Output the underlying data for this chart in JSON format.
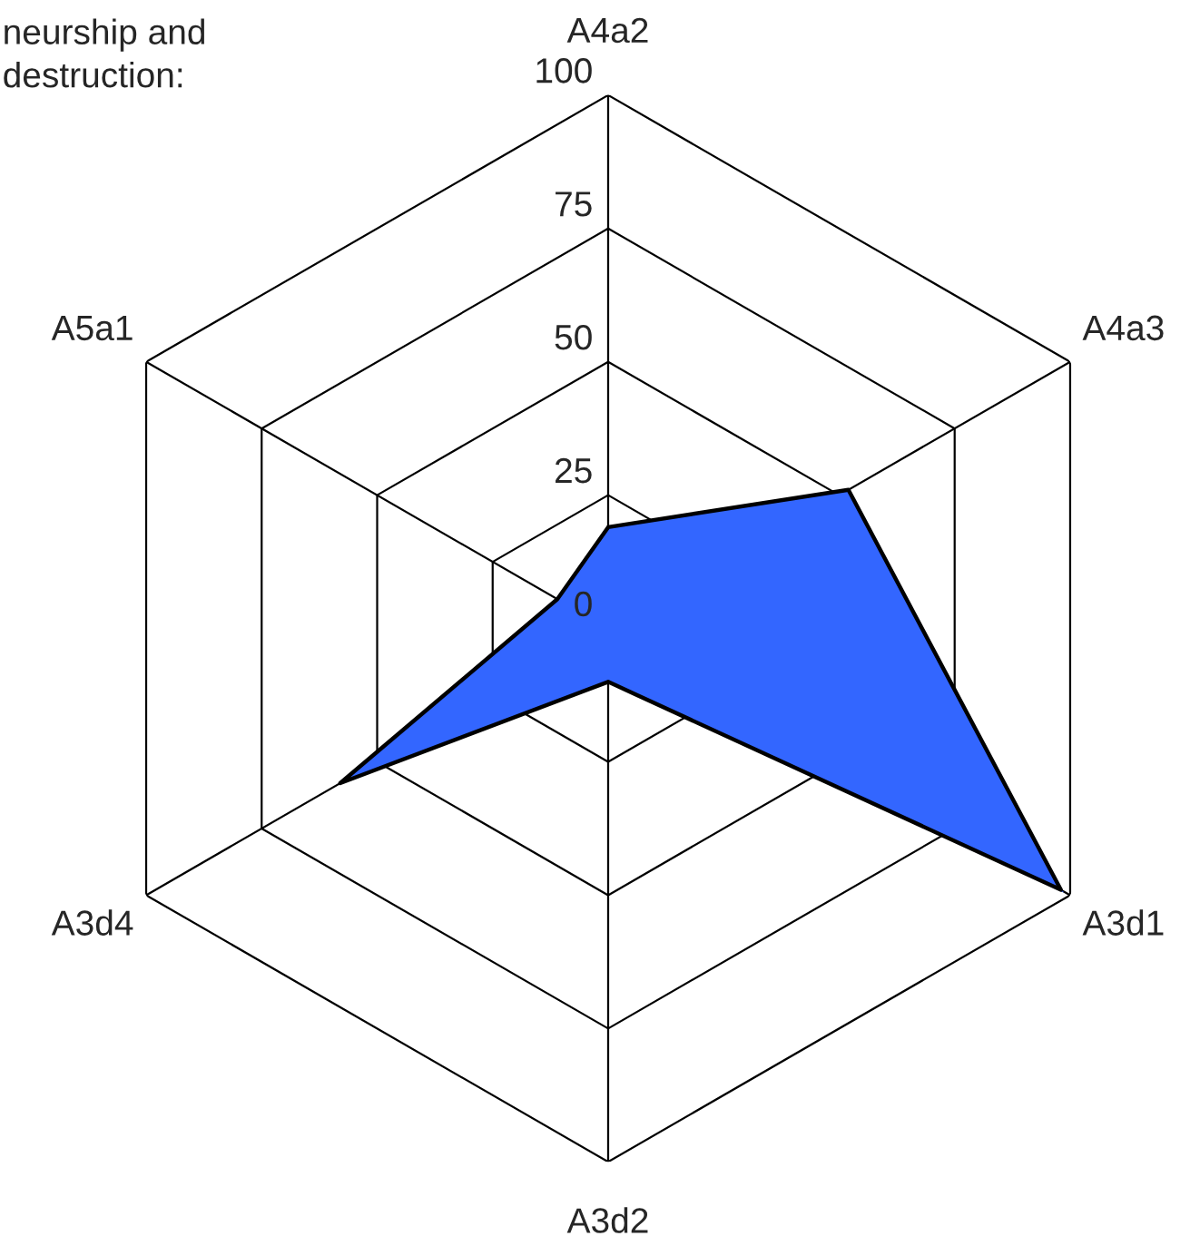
{
  "chart_data": {
    "type": "radar",
    "title": "neurship and\ndestruction:",
    "categories": [
      "A4a2",
      "A4a3",
      "A3d1",
      "A3d2",
      "A3d4",
      "A5a1"
    ],
    "series": [
      {
        "color": "#3366ff",
        "values": [
          19,
          52,
          98,
          10,
          58,
          11
        ]
      }
    ],
    "ylim": [
      0,
      100
    ],
    "yticks": [
      0,
      25,
      50,
      75,
      100
    ],
    "grid": true
  }
}
